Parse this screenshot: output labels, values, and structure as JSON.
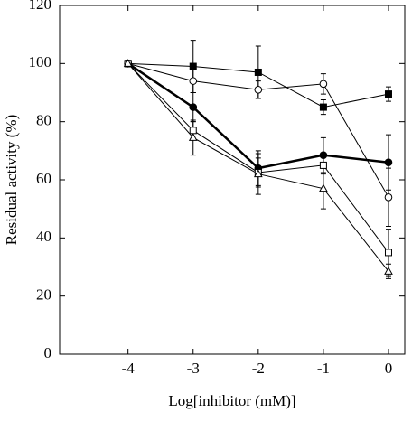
{
  "chart_data": {
    "type": "line",
    "x_label": "Log[inhibitor (mM)]",
    "y_label": "Residual activity (%)",
    "x": [
      -4,
      -3,
      -2,
      -1,
      0
    ],
    "xlim": [
      -5.05,
      0.25
    ],
    "xticks": [
      -4,
      -3,
      -2,
      -1,
      0
    ],
    "ylim": [
      0,
      120
    ],
    "yticks": [
      0,
      20,
      40,
      60,
      80,
      100,
      120
    ],
    "grid": false,
    "series": [
      {
        "color": "#000000",
        "marker": "square",
        "filled": true,
        "line_width": 1,
        "values": [
          100,
          99,
          97,
          85,
          89.5
        ],
        "errors": [
          0,
          9,
          9,
          2.5,
          2.5
        ]
      },
      {
        "color": "#000000",
        "marker": "circle",
        "filled": false,
        "line_width": 1,
        "values": [
          100,
          94,
          91,
          93,
          54
        ],
        "errors": [
          0,
          4,
          3,
          3.5,
          10
        ]
      },
      {
        "color": "#000000",
        "marker": "circle",
        "filled": true,
        "line_width": 2.5,
        "values": [
          100,
          85,
          64,
          68.5,
          66
        ],
        "errors": [
          0,
          5,
          6,
          6,
          9.5
        ]
      },
      {
        "color": "#000000",
        "marker": "square",
        "filled": false,
        "line_width": 1,
        "values": [
          100,
          77,
          62.5,
          65,
          35
        ],
        "errors": [
          0,
          3,
          5,
          3,
          8
        ]
      },
      {
        "color": "#000000",
        "marker": "triangle",
        "filled": false,
        "line_width": 1,
        "values": [
          100,
          74.5,
          62,
          57,
          28.5
        ],
        "errors": [
          0,
          6,
          7,
          7,
          2.5
        ]
      }
    ]
  }
}
